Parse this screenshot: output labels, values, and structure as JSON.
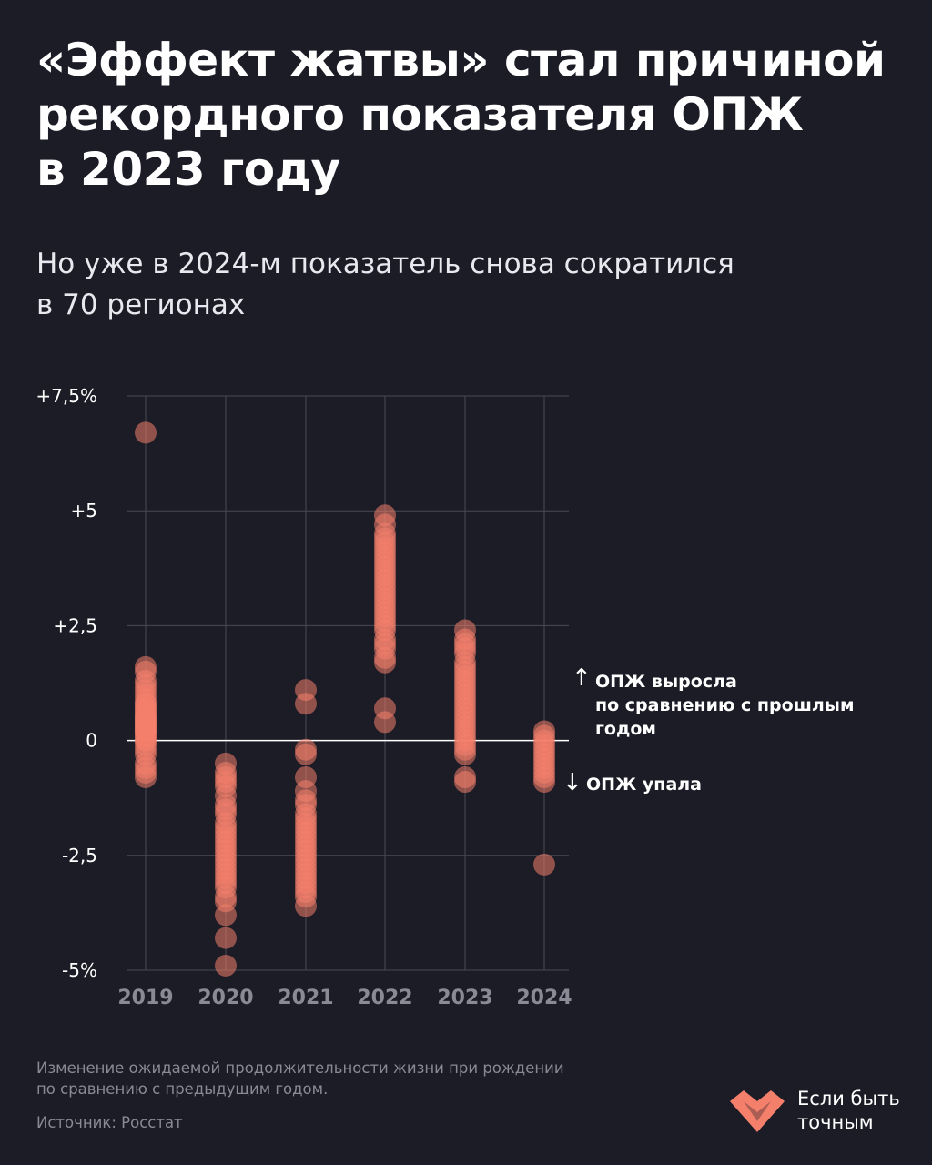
{
  "header": {
    "title_lines": [
      "«Эффект жатвы» стал причиной",
      "рекордного показателя ОПЖ",
      "в 2023 году"
    ],
    "subtitle_lines": [
      "Но уже в 2024-м показатель снова сократился",
      "в 70 регионах"
    ]
  },
  "chart_data": {
    "type": "scatter",
    "categories": [
      "2019",
      "2020",
      "2021",
      "2022",
      "2023",
      "2024"
    ],
    "y_tick_labels": [
      "+7,5%",
      "+5",
      "+2,5",
      "0",
      "-2,5",
      "-5%"
    ],
    "y_ticks": [
      7.5,
      5,
      2.5,
      0,
      -2.5,
      -5
    ],
    "ylim": [
      -5,
      7.5
    ],
    "grid": true,
    "point_color": "#f4806c",
    "series": [
      {
        "category": "2019",
        "values": [
          6.7,
          1.6,
          1.5,
          1.3,
          1.2,
          1.1,
          1.0,
          0.9,
          0.8,
          0.8,
          0.7,
          0.7,
          0.6,
          0.6,
          0.5,
          0.5,
          0.5,
          0.4,
          0.4,
          0.4,
          0.3,
          0.3,
          0.3,
          0.2,
          0.2,
          0.2,
          0.1,
          0.1,
          0.0,
          0.0,
          -0.1,
          -0.2,
          -0.3,
          -0.5,
          -0.6,
          -0.7,
          -0.8
        ]
      },
      {
        "category": "2020",
        "values": [
          -0.5,
          -0.7,
          -0.8,
          -0.9,
          -1.0,
          -1.2,
          -1.4,
          -1.5,
          -1.6,
          -1.8,
          -1.9,
          -2.0,
          -2.1,
          -2.2,
          -2.3,
          -2.4,
          -2.5,
          -2.6,
          -2.7,
          -2.8,
          -2.9,
          -3.0,
          -3.1,
          -3.2,
          -3.4,
          -3.5,
          -3.8,
          -4.3,
          -4.9
        ]
      },
      {
        "category": "2021",
        "values": [
          1.1,
          0.8,
          -0.2,
          -0.3,
          -0.8,
          -1.1,
          -1.3,
          -1.4,
          -1.6,
          -1.7,
          -1.8,
          -1.9,
          -2.0,
          -2.1,
          -2.2,
          -2.3,
          -2.4,
          -2.5,
          -2.6,
          -2.7,
          -2.8,
          -2.9,
          -3.0,
          -3.1,
          -3.2,
          -3.3,
          -3.4,
          -3.6
        ]
      },
      {
        "category": "2022",
        "values": [
          4.9,
          4.7,
          4.5,
          4.4,
          4.3,
          4.2,
          4.1,
          4.0,
          3.9,
          3.8,
          3.7,
          3.6,
          3.5,
          3.4,
          3.3,
          3.2,
          3.1,
          3.0,
          2.9,
          2.8,
          2.7,
          2.6,
          2.5,
          2.4,
          2.2,
          2.1,
          2.0,
          1.8,
          1.7,
          0.7,
          0.4
        ]
      },
      {
        "category": "2023",
        "values": [
          2.4,
          2.2,
          2.1,
          2.0,
          1.9,
          1.7,
          1.6,
          1.5,
          1.4,
          1.3,
          1.2,
          1.1,
          1.0,
          0.9,
          0.8,
          0.7,
          0.6,
          0.5,
          0.4,
          0.3,
          0.2,
          0.1,
          0.0,
          -0.1,
          -0.2,
          -0.3,
          -0.8,
          -0.9
        ]
      },
      {
        "category": "2024",
        "values": [
          0.2,
          0.1,
          0.0,
          -0.1,
          -0.2,
          -0.3,
          -0.4,
          -0.5,
          -0.6,
          -0.7,
          -0.8,
          -0.9,
          -2.7
        ]
      }
    ]
  },
  "annotations": {
    "up_arrow": "↑",
    "up_lines": [
      "ОПЖ выросла",
      "по сравнению с прошлым",
      "годом"
    ],
    "down_arrow": "↓",
    "down_text": "ОПЖ упала"
  },
  "footnote": {
    "lines": [
      "Изменение ожидаемой продолжительности жизни при рождении",
      "по сравнению с предыдущим годом."
    ],
    "source": "Источник: Росстат"
  },
  "logo": {
    "lines": [
      "Если быть",
      "точным"
    ],
    "color": "#f4806c"
  }
}
